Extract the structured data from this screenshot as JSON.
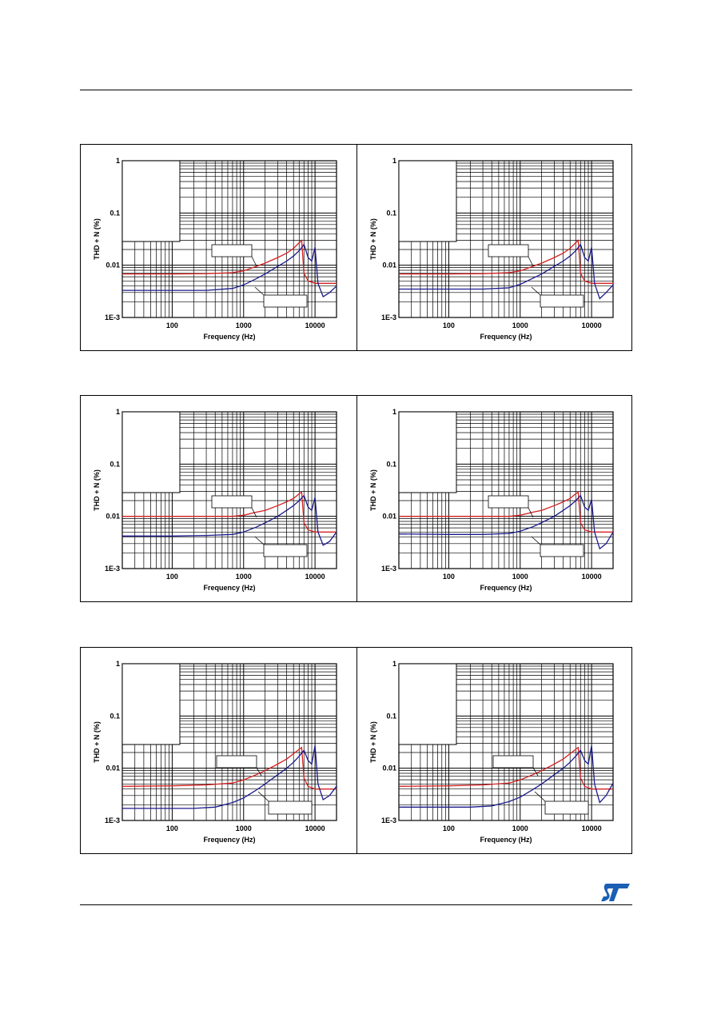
{
  "page": {
    "logo_icon": "st-logo-icon"
  },
  "chart_data": [
    {
      "type": "line",
      "xlabel": "Frequency (Hz)",
      "ylabel": "THD + N (%)",
      "xscale": "log",
      "yscale": "log",
      "xlim": [
        20,
        20000
      ],
      "ylim": [
        0.001,
        1
      ],
      "x_ticks": [
        "100",
        "1000",
        "10000"
      ],
      "y_ticks": [
        "1",
        "0.1",
        "0.01",
        "1E-3"
      ],
      "grid": true,
      "series": [
        {
          "color": "#d42020",
          "x": [
            20,
            100,
            300,
            700,
            1000,
            1500,
            2000,
            3000,
            4000,
            5000,
            6000,
            6500,
            7000,
            8000,
            10000,
            20000
          ],
          "y": [
            0.0068,
            0.0068,
            0.0069,
            0.0072,
            0.0078,
            0.0095,
            0.011,
            0.014,
            0.017,
            0.021,
            0.027,
            0.03,
            0.007,
            0.005,
            0.0045,
            0.0045
          ]
        },
        {
          "color": "#1a1a8c",
          "x": [
            20,
            100,
            300,
            700,
            1000,
            1500,
            2000,
            3000,
            4000,
            5000,
            6000,
            7000,
            8000,
            9000,
            10000,
            11000,
            13000,
            16000,
            20000
          ],
          "y": [
            0.0033,
            0.0033,
            0.0033,
            0.0036,
            0.0042,
            0.0055,
            0.0068,
            0.0095,
            0.012,
            0.015,
            0.019,
            0.025,
            0.014,
            0.012,
            0.022,
            0.0045,
            0.0025,
            0.003,
            0.004
          ]
        }
      ]
    },
    {
      "type": "line",
      "xlabel": "Frequency (Hz)",
      "ylabel": "THD + N (%)",
      "xscale": "log",
      "yscale": "log",
      "xlim": [
        20,
        20000
      ],
      "ylim": [
        0.001,
        1
      ],
      "x_ticks": [
        "100",
        "1000",
        "10000"
      ],
      "y_ticks": [
        "1",
        "0.1",
        "0.01",
        "1E-3"
      ],
      "grid": true,
      "series": [
        {
          "color": "#d42020",
          "x": [
            20,
            100,
            300,
            700,
            1000,
            1500,
            2000,
            3000,
            4000,
            5000,
            6000,
            6500,
            7000,
            8000,
            10000,
            20000
          ],
          "y": [
            0.0068,
            0.0068,
            0.0069,
            0.0072,
            0.0078,
            0.0095,
            0.011,
            0.014,
            0.017,
            0.021,
            0.027,
            0.03,
            0.007,
            0.005,
            0.0045,
            0.0045
          ]
        },
        {
          "color": "#1a1a8c",
          "x": [
            20,
            100,
            300,
            700,
            1000,
            1500,
            2000,
            3000,
            4000,
            5000,
            6000,
            7000,
            8000,
            9000,
            10000,
            11000,
            13000,
            16000,
            20000
          ],
          "y": [
            0.0035,
            0.0035,
            0.0035,
            0.0037,
            0.0043,
            0.0056,
            0.0068,
            0.0095,
            0.012,
            0.015,
            0.019,
            0.025,
            0.014,
            0.012,
            0.022,
            0.0045,
            0.0023,
            0.003,
            0.0042
          ]
        }
      ]
    },
    {
      "type": "line",
      "xlabel": "Frequency (Hz)",
      "ylabel": "THD + N (%)",
      "xscale": "log",
      "yscale": "log",
      "xlim": [
        20,
        20000
      ],
      "ylim": [
        0.001,
        1
      ],
      "x_ticks": [
        "100",
        "1000",
        "10000"
      ],
      "y_ticks": [
        "1",
        "0.1",
        "0.01",
        "1E-3"
      ],
      "grid": true,
      "series": [
        {
          "color": "#d42020",
          "x": [
            20,
            100,
            300,
            700,
            1000,
            1500,
            2000,
            3000,
            4000,
            5000,
            6000,
            6500,
            7000,
            8000,
            10000,
            20000
          ],
          "y": [
            0.01,
            0.01,
            0.01,
            0.01,
            0.0105,
            0.012,
            0.013,
            0.016,
            0.019,
            0.022,
            0.027,
            0.029,
            0.0075,
            0.0055,
            0.005,
            0.005
          ]
        },
        {
          "color": "#1a1a8c",
          "x": [
            20,
            100,
            300,
            700,
            1000,
            1500,
            2000,
            3000,
            4000,
            5000,
            6000,
            7000,
            8000,
            9000,
            10000,
            11000,
            13000,
            16000,
            20000
          ],
          "y": [
            0.0042,
            0.0042,
            0.0043,
            0.0045,
            0.005,
            0.0062,
            0.0075,
            0.01,
            0.013,
            0.016,
            0.02,
            0.025,
            0.015,
            0.013,
            0.023,
            0.005,
            0.0028,
            0.0033,
            0.005
          ]
        }
      ]
    },
    {
      "type": "line",
      "xlabel": "Frequency (Hz)",
      "ylabel": "THD + N (%)",
      "xscale": "log",
      "yscale": "log",
      "xlim": [
        20,
        20000
      ],
      "ylim": [
        0.001,
        1
      ],
      "x_ticks": [
        "100",
        "1000",
        "10000"
      ],
      "y_ticks": [
        "1",
        "0.1",
        "0.01",
        "1E-3"
      ],
      "grid": true,
      "series": [
        {
          "color": "#d42020",
          "x": [
            20,
            100,
            300,
            700,
            1000,
            1500,
            2000,
            3000,
            4000,
            5000,
            6000,
            6500,
            7000,
            8000,
            10000,
            20000
          ],
          "y": [
            0.01,
            0.01,
            0.01,
            0.01,
            0.0105,
            0.012,
            0.013,
            0.016,
            0.019,
            0.022,
            0.027,
            0.029,
            0.0075,
            0.0055,
            0.005,
            0.005
          ]
        },
        {
          "color": "#1a1a8c",
          "x": [
            20,
            100,
            300,
            700,
            1000,
            1500,
            2000,
            3000,
            4000,
            5000,
            6000,
            7000,
            8000,
            9000,
            10000,
            11000,
            13000,
            16000,
            20000
          ],
          "y": [
            0.0046,
            0.0045,
            0.0045,
            0.0047,
            0.0052,
            0.0063,
            0.0076,
            0.01,
            0.013,
            0.016,
            0.02,
            0.025,
            0.015,
            0.013,
            0.021,
            0.005,
            0.0024,
            0.003,
            0.005
          ]
        }
      ]
    },
    {
      "type": "line",
      "xlabel": "Frequency (Hz)",
      "ylabel": "THD + N (%)",
      "xscale": "log",
      "yscale": "log",
      "xlim": [
        20,
        20000
      ],
      "ylim": [
        0.001,
        1
      ],
      "x_ticks": [
        "100",
        "1000",
        "10000"
      ],
      "y_ticks": [
        "1",
        "0.1",
        "0.01",
        "1E-3"
      ],
      "grid": true,
      "series": [
        {
          "color": "#d42020",
          "x": [
            20,
            100,
            300,
            700,
            1000,
            1500,
            2000,
            3000,
            4000,
            5000,
            6000,
            6500,
            7000,
            8000,
            10000,
            20000
          ],
          "y": [
            0.0045,
            0.0046,
            0.0048,
            0.0052,
            0.006,
            0.0075,
            0.009,
            0.012,
            0.015,
            0.019,
            0.023,
            0.025,
            0.0065,
            0.0045,
            0.004,
            0.004
          ]
        },
        {
          "color": "#1a1a8c",
          "x": [
            20,
            100,
            200,
            400,
            700,
            1000,
            1500,
            2000,
            3000,
            4000,
            5000,
            6000,
            7000,
            8000,
            9000,
            10000,
            11000,
            13000,
            16000,
            20000
          ],
          "y": [
            0.0017,
            0.0017,
            0.0017,
            0.0018,
            0.0022,
            0.0027,
            0.0038,
            0.005,
            0.0075,
            0.01,
            0.013,
            0.017,
            0.022,
            0.014,
            0.012,
            0.027,
            0.005,
            0.0025,
            0.003,
            0.0045
          ]
        }
      ]
    },
    {
      "type": "line",
      "xlabel": "Frequency (Hz)",
      "ylabel": "THD + N (%)",
      "xscale": "log",
      "yscale": "log",
      "xlim": [
        20,
        20000
      ],
      "ylim": [
        0.001,
        1
      ],
      "x_ticks": [
        "100",
        "1000",
        "10000"
      ],
      "y_ticks": [
        "1",
        "0.1",
        "0.01",
        "1E-3"
      ],
      "grid": true,
      "series": [
        {
          "color": "#d42020",
          "x": [
            20,
            100,
            300,
            700,
            1000,
            1500,
            2000,
            3000,
            4000,
            5000,
            6000,
            6500,
            7000,
            8000,
            10000,
            20000
          ],
          "y": [
            0.0045,
            0.0046,
            0.0048,
            0.0052,
            0.006,
            0.0075,
            0.009,
            0.012,
            0.015,
            0.019,
            0.023,
            0.025,
            0.0065,
            0.0045,
            0.004,
            0.004
          ]
        },
        {
          "color": "#1a1a8c",
          "x": [
            20,
            100,
            200,
            400,
            700,
            1000,
            1500,
            2000,
            3000,
            4000,
            5000,
            6000,
            7000,
            8000,
            9000,
            10000,
            11000,
            13000,
            16000,
            20000
          ],
          "y": [
            0.0018,
            0.0018,
            0.0018,
            0.0019,
            0.0023,
            0.0028,
            0.0039,
            0.005,
            0.0075,
            0.01,
            0.013,
            0.017,
            0.022,
            0.014,
            0.012,
            0.027,
            0.005,
            0.0022,
            0.003,
            0.0052
          ]
        }
      ]
    }
  ]
}
